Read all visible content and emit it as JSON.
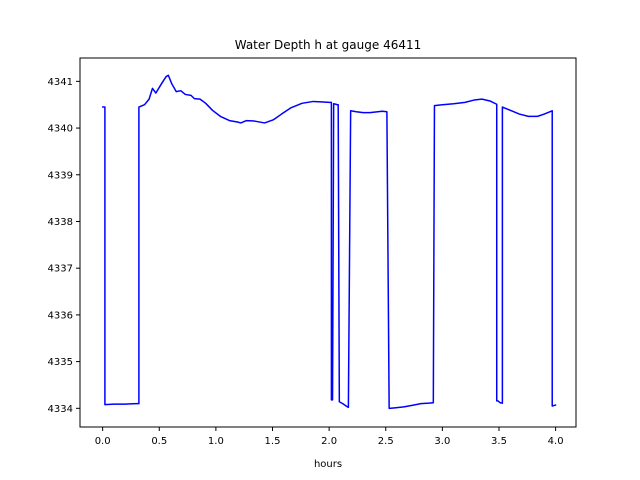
{
  "chart_data": {
    "type": "line",
    "title": "Water Depth h at gauge 46411",
    "xlabel": "hours",
    "ylabel": "",
    "xlim": [
      -0.2,
      4.18
    ],
    "ylim": [
      4333.6,
      4341.5
    ],
    "xticks": [
      0.0,
      0.5,
      1.0,
      1.5,
      2.0,
      2.5,
      3.0,
      3.5,
      4.0
    ],
    "xtick_labels": [
      "0.0",
      "0.5",
      "1.0",
      "1.5",
      "2.0",
      "2.5",
      "3.0",
      "3.5",
      "4.0"
    ],
    "yticks": [
      4334,
      4335,
      4336,
      4337,
      4338,
      4339,
      4340,
      4341
    ],
    "ytick_labels": [
      "4334",
      "4335",
      "4336",
      "4337",
      "4338",
      "4339",
      "4340",
      "4341"
    ],
    "grid": false,
    "series": [
      {
        "color": "#0000ff",
        "x": [
          0.0,
          0.02,
          0.02,
          0.1,
          0.2,
          0.3,
          0.32,
          0.32,
          0.37,
          0.41,
          0.44,
          0.47,
          0.52,
          0.56,
          0.58,
          0.61,
          0.65,
          0.69,
          0.73,
          0.78,
          0.81,
          0.86,
          0.91,
          0.97,
          1.04,
          1.12,
          1.19,
          1.22,
          1.27,
          1.34,
          1.43,
          1.51,
          1.58,
          1.66,
          1.76,
          1.86,
          1.93,
          2.0,
          2.02,
          2.02,
          2.03,
          2.04,
          2.06,
          2.07,
          2.08,
          2.09,
          2.12,
          2.15,
          2.17,
          2.19,
          2.24,
          2.3,
          2.36,
          2.43,
          2.47,
          2.51,
          2.53,
          2.58,
          2.66,
          2.75,
          2.81,
          2.88,
          2.92,
          2.93,
          3.0,
          3.1,
          3.2,
          3.28,
          3.35,
          3.42,
          3.48,
          3.48,
          3.49,
          3.51,
          3.53,
          3.53,
          3.6,
          3.68,
          3.76,
          3.84,
          3.9,
          3.97,
          3.97,
          4.0
        ],
        "y": [
          4340.45,
          4340.45,
          4334.08,
          4334.09,
          4334.09,
          4334.1,
          4334.1,
          4340.45,
          4340.5,
          4340.62,
          4340.85,
          4340.75,
          4340.95,
          4341.1,
          4341.13,
          4340.95,
          4340.78,
          4340.8,
          4340.72,
          4340.7,
          4340.63,
          4340.62,
          4340.53,
          4340.38,
          4340.25,
          4340.16,
          4340.13,
          4340.11,
          4340.16,
          4340.15,
          4340.11,
          4340.18,
          4340.3,
          4340.43,
          4340.53,
          4340.57,
          4340.56,
          4340.55,
          4340.55,
          4334.18,
          4334.18,
          4340.52,
          4340.51,
          4340.5,
          4340.5,
          4334.14,
          4334.1,
          4334.05,
          4334.02,
          4340.37,
          4340.35,
          4340.33,
          4340.33,
          4340.35,
          4340.36,
          4340.35,
          4334.0,
          4334.01,
          4334.03,
          4334.07,
          4334.1,
          4334.11,
          4334.12,
          4340.48,
          4340.5,
          4340.52,
          4340.55,
          4340.6,
          4340.62,
          4340.58,
          4340.51,
          4334.16,
          4334.16,
          4334.12,
          4334.11,
          4340.45,
          4340.38,
          4340.3,
          4340.25,
          4340.25,
          4340.3,
          4340.37,
          4334.05,
          4334.07
        ]
      }
    ]
  }
}
